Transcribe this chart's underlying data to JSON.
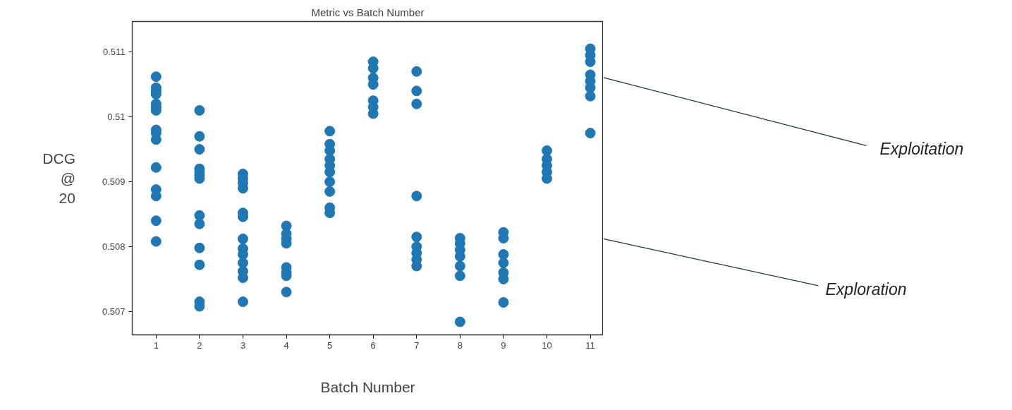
{
  "chart_data": {
    "type": "scatter",
    "title": "Metric vs Batch Number",
    "xlabel": "Batch Number",
    "ylabel": "DCG\n@\n20",
    "xlim": [
      0.45,
      11.3
    ],
    "ylim": [
      0.50664,
      0.51147
    ],
    "xticks": [
      1,
      2,
      3,
      4,
      5,
      6,
      7,
      8,
      9,
      10,
      11
    ],
    "yticks": [
      0.507,
      0.508,
      0.509,
      0.51,
      0.511
    ],
    "grid": false,
    "marker": "circle",
    "series": [
      {
        "color": "#1f77b4",
        "x": [
          1,
          1,
          1,
          1,
          1,
          1,
          1,
          1,
          1,
          1,
          1,
          1,
          1,
          1,
          1,
          2,
          2,
          2,
          2,
          2,
          2,
          2,
          2,
          2,
          2,
          2,
          2,
          2,
          3,
          3,
          3,
          3,
          3,
          3,
          3,
          3,
          3,
          3,
          3,
          3,
          3,
          4,
          4,
          4,
          4,
          4,
          4,
          4,
          4,
          5,
          5,
          5,
          5,
          5,
          5,
          5,
          5,
          5,
          5,
          6,
          6,
          6,
          6,
          6,
          6,
          6,
          7,
          7,
          7,
          7,
          7,
          7,
          7,
          7,
          7,
          8,
          8,
          8,
          8,
          8,
          8,
          8,
          9,
          9,
          9,
          9,
          9,
          9,
          9,
          10,
          10,
          10,
          10,
          10,
          11,
          11,
          11,
          11,
          11,
          11,
          11,
          11
        ],
        "values": [
          0.51062,
          0.51045,
          0.5104,
          0.51035,
          0.5102,
          0.51015,
          0.5101,
          0.5098,
          0.50975,
          0.50965,
          0.50922,
          0.50888,
          0.50878,
          0.5084,
          0.50808,
          0.5101,
          0.5097,
          0.5095,
          0.5092,
          0.50915,
          0.5091,
          0.50905,
          0.50848,
          0.50835,
          0.50798,
          0.50772,
          0.50715,
          0.50708,
          0.50912,
          0.50905,
          0.50898,
          0.5089,
          0.50852,
          0.50846,
          0.50812,
          0.50797,
          0.50788,
          0.50775,
          0.50762,
          0.50752,
          0.50715,
          0.50832,
          0.5082,
          0.50812,
          0.50805,
          0.50768,
          0.5076,
          0.50755,
          0.5073,
          0.50978,
          0.50958,
          0.50948,
          0.50935,
          0.50925,
          0.50915,
          0.509,
          0.50885,
          0.5086,
          0.50852,
          0.51085,
          0.51075,
          0.5106,
          0.5105,
          0.51025,
          0.51015,
          0.51005,
          0.5107,
          0.5104,
          0.5102,
          0.50878,
          0.50815,
          0.508,
          0.5079,
          0.5078,
          0.5077,
          0.50813,
          0.50805,
          0.50795,
          0.50785,
          0.5077,
          0.50755,
          0.50684,
          0.50822,
          0.50813,
          0.50788,
          0.50775,
          0.5076,
          0.5075,
          0.50714,
          0.50948,
          0.50935,
          0.50925,
          0.50915,
          0.50905,
          0.51105,
          0.51095,
          0.51085,
          0.51065,
          0.51055,
          0.51045,
          0.51032,
          0.50975
        ]
      }
    ],
    "annotations": [
      "Exploitation",
      "Exploration"
    ]
  }
}
